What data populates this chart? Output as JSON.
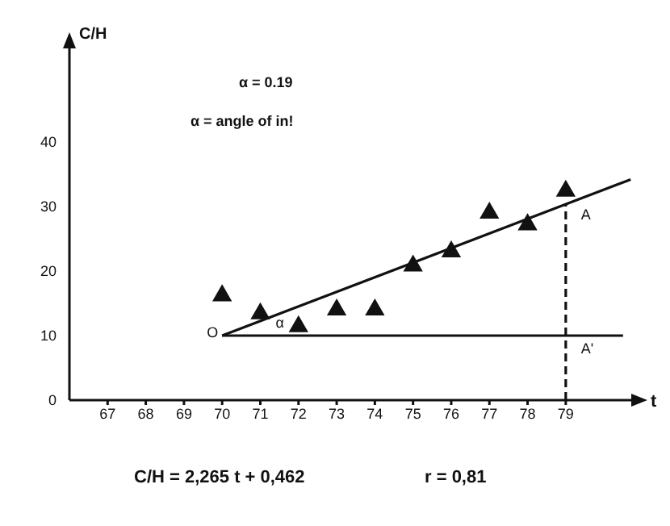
{
  "chart_data": {
    "type": "scatter",
    "xlabel": "t",
    "ylabel": "C/H",
    "xlim": [
      66,
      80.8
    ],
    "ylim": [
      0,
      55
    ],
    "xticks": [
      67,
      68,
      69,
      70,
      71,
      72,
      73,
      74,
      75,
      76,
      77,
      78,
      79
    ],
    "yticks": [
      0,
      10,
      20,
      30,
      40
    ],
    "grid": false,
    "legend": false,
    "marker": "triangle",
    "series": [
      {
        "type": "scatter",
        "color": "#111111",
        "x": [
          70,
          71,
          72,
          73,
          74,
          75,
          76,
          77,
          78,
          79
        ],
        "values": [
          16.2,
          13.4,
          11.4,
          14,
          14,
          20.8,
          23,
          29,
          27.2,
          32.4
        ]
      },
      {
        "type": "line",
        "color": "#111111",
        "marker": "none",
        "x": [
          70,
          80.7
        ],
        "values": [
          10,
          34.2
        ]
      },
      {
        "type": "line",
        "color": "#111111",
        "marker": "none",
        "x": [
          70,
          80.5
        ],
        "values": [
          10,
          10
        ]
      }
    ],
    "ref_lines": [
      {
        "axis": "x",
        "value": 79,
        "line_style": "dashed",
        "color": "#111111"
      }
    ],
    "annotations": [
      "α = 0.19",
      "α = angle of in!",
      "C/H = 2,265 t + 0,462",
      "r = 0,81",
      "O",
      "α",
      "A",
      "A'"
    ]
  }
}
